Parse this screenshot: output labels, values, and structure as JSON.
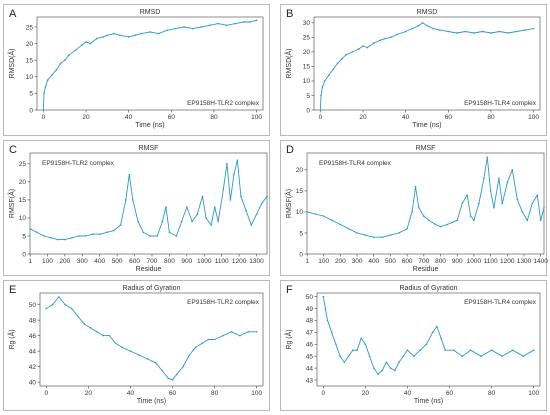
{
  "chart_data": [
    {
      "panel": "A",
      "type": "line",
      "title": "RMSD",
      "annotation": "EP9158H-TLR2 complex",
      "xlabel": "Time (ns)",
      "ylabel": "RMSD(Å)",
      "xlim": [
        -3,
        103
      ],
      "ylim": [
        0,
        28
      ],
      "xticks": [
        0,
        20,
        40,
        60,
        80,
        100
      ],
      "yticks": [
        0,
        5,
        10,
        15,
        20,
        25
      ],
      "color": "#2a9ac9",
      "points": [
        [
          0,
          0
        ],
        [
          0.3,
          5
        ],
        [
          1,
          7
        ],
        [
          2,
          9
        ],
        [
          4,
          10.5
        ],
        [
          6,
          12
        ],
        [
          8,
          14
        ],
        [
          10,
          15
        ],
        [
          12,
          16.5
        ],
        [
          15,
          18
        ],
        [
          18,
          19.5
        ],
        [
          20,
          20.5
        ],
        [
          22,
          20
        ],
        [
          25,
          21.5
        ],
        [
          28,
          22
        ],
        [
          30,
          22.5
        ],
        [
          33,
          23
        ],
        [
          36,
          22.5
        ],
        [
          40,
          22
        ],
        [
          43,
          22.5
        ],
        [
          46,
          23
        ],
        [
          50,
          23.5
        ],
        [
          54,
          23
        ],
        [
          58,
          24
        ],
        [
          62,
          24.5
        ],
        [
          66,
          25
        ],
        [
          70,
          24.5
        ],
        [
          74,
          25
        ],
        [
          78,
          25.5
        ],
        [
          82,
          26
        ],
        [
          86,
          25.5
        ],
        [
          90,
          26
        ],
        [
          94,
          26.5
        ],
        [
          97,
          26.5
        ],
        [
          100,
          27
        ]
      ]
    },
    {
      "panel": "B",
      "type": "line",
      "title": "RMSD",
      "annotation": "EP9158H-TLR4 complex",
      "xlabel": "Time (ns)",
      "ylabel": "RMSD(Å)",
      "xlim": [
        -3,
        103
      ],
      "ylim": [
        0,
        32
      ],
      "xticks": [
        0,
        20,
        40,
        60,
        80,
        100
      ],
      "yticks": [
        0,
        5,
        10,
        15,
        20,
        25,
        30
      ],
      "color": "#2a9ac9",
      "points": [
        [
          0,
          0
        ],
        [
          0.3,
          5
        ],
        [
          1,
          8
        ],
        [
          2,
          10
        ],
        [
          4,
          12
        ],
        [
          6,
          14
        ],
        [
          8,
          16
        ],
        [
          10,
          17.5
        ],
        [
          12,
          19
        ],
        [
          15,
          20
        ],
        [
          18,
          21
        ],
        [
          20,
          22
        ],
        [
          22,
          21.5
        ],
        [
          25,
          23
        ],
        [
          28,
          24
        ],
        [
          30,
          24.5
        ],
        [
          33,
          25
        ],
        [
          36,
          26
        ],
        [
          40,
          27
        ],
        [
          43,
          28
        ],
        [
          46,
          29
        ],
        [
          48,
          30
        ],
        [
          50,
          29
        ],
        [
          53,
          28
        ],
        [
          56,
          27.5
        ],
        [
          60,
          27
        ],
        [
          64,
          26.5
        ],
        [
          68,
          27
        ],
        [
          72,
          26.5
        ],
        [
          76,
          27
        ],
        [
          80,
          26.5
        ],
        [
          84,
          27
        ],
        [
          88,
          26.5
        ],
        [
          92,
          27
        ],
        [
          96,
          27.5
        ],
        [
          100,
          28
        ]
      ]
    },
    {
      "panel": "C",
      "type": "line",
      "title": "RMSF",
      "annotation": "EP9158H-TLR2 complex",
      "xlabel": "Residue",
      "ylabel": "RMSF(Å)",
      "xlim": [
        0,
        1360
      ],
      "ylim": [
        0,
        28
      ],
      "xticks": [
        1,
        100,
        200,
        300,
        400,
        500,
        600,
        700,
        800,
        900,
        1000,
        1100,
        1200,
        1300
      ],
      "yticks": [
        0,
        5,
        10,
        15,
        20,
        25
      ],
      "color": "#2a9ac9",
      "points": [
        [
          1,
          7
        ],
        [
          40,
          6
        ],
        [
          80,
          5
        ],
        [
          120,
          4.5
        ],
        [
          160,
          4
        ],
        [
          200,
          4
        ],
        [
          240,
          4.5
        ],
        [
          280,
          5
        ],
        [
          320,
          5
        ],
        [
          360,
          5.5
        ],
        [
          400,
          5.5
        ],
        [
          440,
          6
        ],
        [
          480,
          6.5
        ],
        [
          520,
          8
        ],
        [
          550,
          15
        ],
        [
          570,
          22
        ],
        [
          590,
          15
        ],
        [
          620,
          9
        ],
        [
          650,
          6
        ],
        [
          690,
          5
        ],
        [
          730,
          5
        ],
        [
          760,
          9
        ],
        [
          780,
          13
        ],
        [
          800,
          6
        ],
        [
          840,
          5
        ],
        [
          870,
          9
        ],
        [
          900,
          13
        ],
        [
          930,
          9
        ],
        [
          960,
          11
        ],
        [
          990,
          16
        ],
        [
          1010,
          10
        ],
        [
          1040,
          8
        ],
        [
          1060,
          13
        ],
        [
          1080,
          9
        ],
        [
          1110,
          18
        ],
        [
          1130,
          25
        ],
        [
          1150,
          15
        ],
        [
          1170,
          22
        ],
        [
          1190,
          26
        ],
        [
          1210,
          16
        ],
        [
          1240,
          12
        ],
        [
          1270,
          8
        ],
        [
          1300,
          11
        ],
        [
          1330,
          14
        ],
        [
          1360,
          16
        ]
      ]
    },
    {
      "panel": "D",
      "type": "line",
      "title": "RMSF",
      "annotation": "EP9158H-TLR4 complex",
      "xlabel": "Residue",
      "ylabel": "RMSF(Å)",
      "xlim": [
        0,
        1420
      ],
      "ylim": [
        0,
        24
      ],
      "xticks": [
        1,
        100,
        200,
        300,
        400,
        500,
        600,
        700,
        800,
        900,
        1000,
        1100,
        1200,
        1300,
        1400
      ],
      "yticks": [
        0,
        5,
        10,
        15,
        20
      ],
      "color": "#2a9ac9",
      "points": [
        [
          1,
          10
        ],
        [
          50,
          9.5
        ],
        [
          100,
          9
        ],
        [
          150,
          8
        ],
        [
          200,
          7
        ],
        [
          250,
          6
        ],
        [
          300,
          5
        ],
        [
          350,
          4.5
        ],
        [
          400,
          4
        ],
        [
          450,
          4
        ],
        [
          500,
          4.5
        ],
        [
          550,
          5
        ],
        [
          600,
          6
        ],
        [
          630,
          10
        ],
        [
          650,
          16
        ],
        [
          670,
          11
        ],
        [
          700,
          9
        ],
        [
          730,
          8
        ],
        [
          770,
          7
        ],
        [
          800,
          6.5
        ],
        [
          840,
          7
        ],
        [
          870,
          7.5
        ],
        [
          900,
          8
        ],
        [
          930,
          12
        ],
        [
          960,
          14
        ],
        [
          980,
          9
        ],
        [
          1000,
          8
        ],
        [
          1030,
          12
        ],
        [
          1060,
          18
        ],
        [
          1080,
          23
        ],
        [
          1100,
          15
        ],
        [
          1120,
          11
        ],
        [
          1150,
          18
        ],
        [
          1170,
          12
        ],
        [
          1200,
          17
        ],
        [
          1230,
          20
        ],
        [
          1260,
          13
        ],
        [
          1290,
          10
        ],
        [
          1320,
          8
        ],
        [
          1350,
          12
        ],
        [
          1380,
          14
        ],
        [
          1400,
          8
        ],
        [
          1420,
          11
        ]
      ]
    },
    {
      "panel": "E",
      "type": "line",
      "title": "Radius of Gyration",
      "annotation": "EP9158H-TLR2 complex",
      "xlabel": "Time (ns)",
      "ylabel": "Rg (Å)",
      "xlim": [
        -3,
        103
      ],
      "ylim": [
        39.5,
        51.5
      ],
      "xticks": [
        0,
        20,
        40,
        60,
        80,
        100
      ],
      "yticks": [
        40,
        42,
        44,
        46,
        48,
        50
      ],
      "color": "#2a9ac9",
      "points": [
        [
          0,
          49.5
        ],
        [
          3,
          50
        ],
        [
          6,
          51
        ],
        [
          9,
          50
        ],
        [
          12,
          49.5
        ],
        [
          15,
          48.5
        ],
        [
          18,
          47.5
        ],
        [
          21,
          47
        ],
        [
          24,
          46.5
        ],
        [
          27,
          46
        ],
        [
          30,
          46
        ],
        [
          33,
          45
        ],
        [
          36,
          44.5
        ],
        [
          40,
          44
        ],
        [
          44,
          43.5
        ],
        [
          48,
          43
        ],
        [
          52,
          42.5
        ],
        [
          55,
          41.5
        ],
        [
          58,
          40.5
        ],
        [
          60,
          40.3
        ],
        [
          62,
          41
        ],
        [
          65,
          42
        ],
        [
          68,
          43.5
        ],
        [
          71,
          44.5
        ],
        [
          74,
          45
        ],
        [
          77,
          45.5
        ],
        [
          80,
          45.5
        ],
        [
          84,
          46
        ],
        [
          88,
          46.5
        ],
        [
          92,
          46
        ],
        [
          96,
          46.5
        ],
        [
          100,
          46.5
        ]
      ]
    },
    {
      "panel": "F",
      "type": "line",
      "title": "Radius of Gyration",
      "annotation": "EP9158H-TLR4 complex",
      "xlabel": "Time (ns)",
      "ylabel": "Rg (Å)",
      "xlim": [
        -3,
        103
      ],
      "ylim": [
        42.5,
        50.3
      ],
      "xticks": [
        0,
        20,
        40,
        60,
        80,
        100
      ],
      "yticks": [
        43,
        44,
        45,
        46,
        47,
        48,
        49,
        50
      ],
      "color": "#2a9ac9",
      "points": [
        [
          0,
          50
        ],
        [
          1,
          49
        ],
        [
          2,
          48
        ],
        [
          4,
          47
        ],
        [
          6,
          46
        ],
        [
          8,
          45
        ],
        [
          10,
          44.5
        ],
        [
          12,
          45
        ],
        [
          14,
          45.5
        ],
        [
          16,
          45.5
        ],
        [
          18,
          46.5
        ],
        [
          20,
          46
        ],
        [
          22,
          45
        ],
        [
          24,
          44
        ],
        [
          26,
          43.5
        ],
        [
          28,
          43.8
        ],
        [
          30,
          44.5
        ],
        [
          32,
          44
        ],
        [
          34,
          43.8
        ],
        [
          36,
          44.5
        ],
        [
          38,
          45
        ],
        [
          40,
          45.5
        ],
        [
          43,
          45
        ],
        [
          46,
          45.5
        ],
        [
          49,
          46
        ],
        [
          52,
          47
        ],
        [
          54,
          47.5
        ],
        [
          56,
          46.5
        ],
        [
          58,
          45.5
        ],
        [
          62,
          45.5
        ],
        [
          66,
          45
        ],
        [
          70,
          45.5
        ],
        [
          75,
          45
        ],
        [
          80,
          45.5
        ],
        [
          85,
          45
        ],
        [
          90,
          45.5
        ],
        [
          95,
          45
        ],
        [
          100,
          45.5
        ]
      ]
    }
  ]
}
